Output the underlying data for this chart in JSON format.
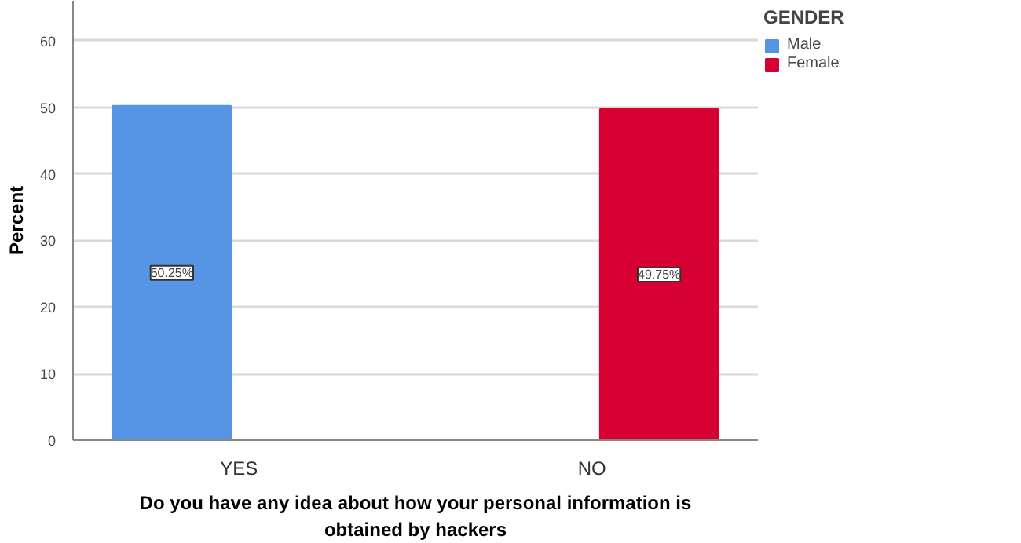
{
  "chart_data": {
    "type": "bar",
    "xlabel": "Do you have any idea about how your personal information is obtained by hackers",
    "ylabel": "Percent",
    "legend_title": "GENDER",
    "categories": [
      "YES",
      "NO"
    ],
    "series": [
      {
        "name": "Male",
        "color": "#5595e3",
        "values": [
          50.25,
          null
        ],
        "value_labels": [
          "50.25%",
          null
        ]
      },
      {
        "name": "Female",
        "color": "#d60032",
        "values": [
          null,
          49.75
        ],
        "value_labels": [
          null,
          "49.75%"
        ]
      }
    ],
    "ylim": [
      0,
      66
    ],
    "yticks": [
      0,
      10,
      20,
      30,
      40,
      50,
      60
    ],
    "grid": "y",
    "legend": "top right"
  }
}
